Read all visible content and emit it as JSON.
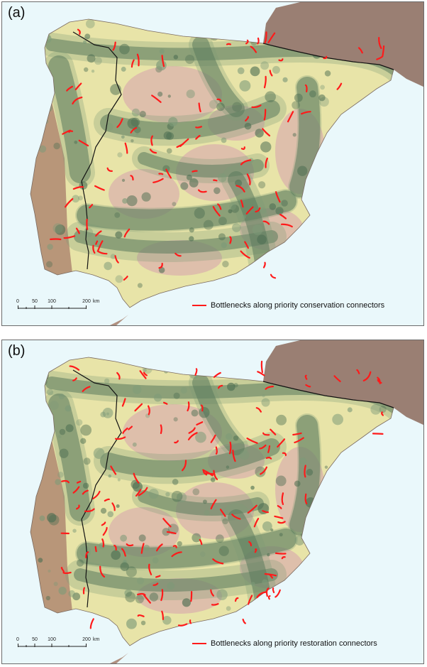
{
  "colors": {
    "sea": "#eaf8fb",
    "bottleneck": "#ff1a1a",
    "border": "#111111",
    "agri_light": "#e8e4a8",
    "dry_pink": "#dcb8ac",
    "forest_dark": "#4d6e52",
    "forest_mid": "#7d9a78",
    "coast_brown": "#a87c6a"
  },
  "panels": [
    {
      "label": "(a)",
      "legend": "Bottlenecks along priority conservation connectors",
      "scale": {
        "ticks": [
          "0",
          "50",
          "100",
          "200"
        ],
        "unit": "km"
      }
    },
    {
      "label": "(b)",
      "legend": "Bottlenecks along priority restoration connectors",
      "scale": {
        "ticks": [
          "0",
          "50",
          "100",
          "200"
        ],
        "unit": "km"
      }
    }
  ]
}
